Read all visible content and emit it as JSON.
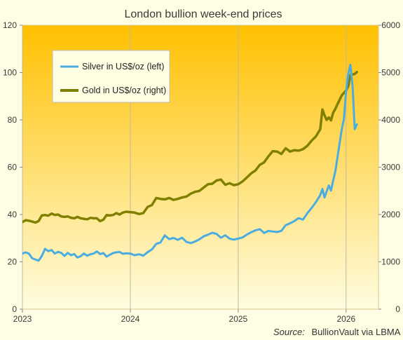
{
  "chart_data": {
    "type": "line",
    "title": "London bullion week-end prices",
    "source_label": "Source:",
    "source_text": "BullionVault via LBMA",
    "x_ticks": [
      "2023",
      "2024",
      "2025",
      "2026"
    ],
    "y_left": {
      "ylim": [
        0,
        120
      ],
      "ticks": [
        "0",
        "20",
        "40",
        "60",
        "80",
        "100",
        "120"
      ]
    },
    "y_right": {
      "ylim": [
        0,
        6000
      ],
      "ticks": [
        "0",
        "1000",
        "2000",
        "3000",
        "4000",
        "5000",
        "6000"
      ]
    },
    "xlim": [
      2023.0,
      2026.3
    ],
    "grid": "vertical",
    "legend_position": "top-left",
    "background_gradient": [
      "#FFC000",
      "#FFFDE0"
    ],
    "series": [
      {
        "name": "Silver in US$/oz (left)",
        "axis": "left",
        "color": "#4BACE0",
        "x": [
          2023.0,
          2023.03,
          2023.06,
          2023.09,
          2023.12,
          2023.15,
          2023.18,
          2023.21,
          2023.24,
          2023.27,
          2023.3,
          2023.33,
          2023.36,
          2023.39,
          2023.42,
          2023.45,
          2023.48,
          2023.51,
          2023.54,
          2023.57,
          2023.6,
          2023.63,
          2023.66,
          2023.69,
          2023.72,
          2023.75,
          2023.78,
          2023.81,
          2023.84,
          2023.87,
          2023.9,
          2023.93,
          2023.96,
          2024.0,
          2024.04,
          2024.08,
          2024.12,
          2024.16,
          2024.2,
          2024.24,
          2024.28,
          2024.32,
          2024.36,
          2024.4,
          2024.44,
          2024.48,
          2024.52,
          2024.56,
          2024.6,
          2024.64,
          2024.68,
          2024.72,
          2024.76,
          2024.8,
          2024.84,
          2024.88,
          2024.92,
          2024.96,
          2025.0,
          2025.04,
          2025.08,
          2025.12,
          2025.16,
          2025.2,
          2025.24,
          2025.28,
          2025.32,
          2025.36,
          2025.4,
          2025.44,
          2025.48,
          2025.52,
          2025.56,
          2025.6,
          2025.64,
          2025.68,
          2025.72,
          2025.76,
          2025.78,
          2025.8,
          2025.82,
          2025.84,
          2025.86,
          2025.88,
          2025.9,
          2025.92,
          2025.94,
          2025.96,
          2025.98,
          2026.0,
          2026.02,
          2026.04,
          2026.06,
          2026.08,
          2026.1
        ],
        "values": [
          23.5,
          24,
          23.5,
          21.5,
          21,
          20.5,
          22.5,
          25.5,
          24.5,
          25,
          23.5,
          24.2,
          23.8,
          22.5,
          23.8,
          22.8,
          23.3,
          21.8,
          22.4,
          23.5,
          22.6,
          23.2,
          23.5,
          24.4,
          23.3,
          23.7,
          22.2,
          23,
          23.7,
          24,
          24.2,
          23.4,
          23.6,
          23.5,
          22.8,
          23.2,
          22.6,
          24.1,
          25.2,
          27.6,
          28.2,
          31.2,
          29.6,
          30.1,
          29.3,
          30.2,
          28.4,
          27.9,
          28.6,
          29.5,
          30.8,
          31.5,
          32.3,
          31.8,
          30.2,
          31.2,
          29.8,
          29.4,
          29.8,
          30.3,
          31.5,
          32.5,
          33.3,
          33.8,
          32.2,
          33.1,
          32.8,
          32.6,
          33.1,
          35.5,
          36.3,
          37.2,
          38.5,
          37.8,
          40.5,
          42.8,
          45.2,
          48.2,
          50.8,
          47.2,
          49.8,
          52.3,
          50.1,
          54.3,
          58.2,
          64.1,
          70.2,
          76.1,
          80.3,
          92.1,
          99.5,
          103.3,
          94.1,
          76.1,
          78.1
        ]
      },
      {
        "name": "Gold in US$/oz (right)",
        "axis": "right",
        "color": "#808000",
        "x": [
          2023.0,
          2023.03,
          2023.06,
          2023.09,
          2023.12,
          2023.15,
          2023.18,
          2023.21,
          2023.24,
          2023.27,
          2023.3,
          2023.33,
          2023.36,
          2023.39,
          2023.42,
          2023.45,
          2023.48,
          2023.51,
          2023.54,
          2023.57,
          2023.6,
          2023.63,
          2023.66,
          2023.69,
          2023.72,
          2023.75,
          2023.78,
          2023.81,
          2023.84,
          2023.87,
          2023.9,
          2023.93,
          2023.96,
          2024.0,
          2024.04,
          2024.08,
          2024.12,
          2024.16,
          2024.2,
          2024.24,
          2024.28,
          2024.32,
          2024.36,
          2024.4,
          2024.44,
          2024.48,
          2024.52,
          2024.56,
          2024.6,
          2024.64,
          2024.68,
          2024.72,
          2024.76,
          2024.8,
          2024.84,
          2024.88,
          2024.92,
          2024.96,
          2025.0,
          2025.04,
          2025.08,
          2025.12,
          2025.16,
          2025.2,
          2025.24,
          2025.28,
          2025.32,
          2025.36,
          2025.4,
          2025.44,
          2025.48,
          2025.52,
          2025.56,
          2025.6,
          2025.64,
          2025.68,
          2025.72,
          2025.76,
          2025.78,
          2025.8,
          2025.82,
          2025.84,
          2025.86,
          2025.88,
          2025.9,
          2025.92,
          2025.96,
          2026.0,
          2026.02,
          2026.04,
          2026.06,
          2026.08,
          2026.1
        ],
        "values": [
          1840,
          1880,
          1870,
          1850,
          1830,
          1860,
          1980,
          1990,
          1975,
          2020,
          1990,
          2000,
          1960,
          1950,
          1960,
          1930,
          1920,
          1950,
          1920,
          1910,
          1900,
          1930,
          1920,
          1920,
          1860,
          1890,
          1990,
          1980,
          1990,
          2030,
          2000,
          2040,
          2060,
          2050,
          2040,
          2010,
          2030,
          2160,
          2200,
          2350,
          2330,
          2320,
          2350,
          2310,
          2330,
          2360,
          2380,
          2440,
          2480,
          2500,
          2570,
          2640,
          2650,
          2720,
          2740,
          2630,
          2660,
          2620,
          2640,
          2700,
          2780,
          2870,
          2930,
          3050,
          3100,
          3230,
          3340,
          3330,
          3280,
          3400,
          3330,
          3360,
          3350,
          3380,
          3450,
          3560,
          3650,
          3800,
          4220,
          4100,
          4000,
          4050,
          3990,
          4150,
          4230,
          4330,
          4520,
          4620,
          4710,
          4950,
          4960,
          4970,
          5010
        ]
      }
    ]
  }
}
